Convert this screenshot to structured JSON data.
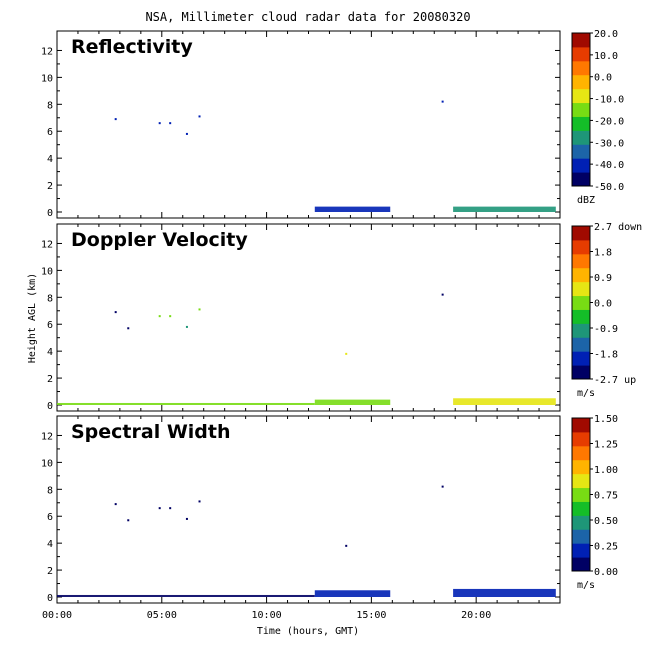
{
  "title": "NSA, Millimeter cloud radar data for 20080320",
  "ylabel": "Height AGL (km)",
  "xlabel": "Time (hours, GMT)",
  "xticks": [
    "00:00",
    "05:00",
    "10:00",
    "15:00",
    "20:00"
  ],
  "yticks": [
    "0",
    "2",
    "4",
    "6",
    "8",
    "10",
    "12"
  ],
  "colors": {
    "colormap": [
      "#000064",
      "#0020b4",
      "#1c64a8",
      "#1e9678",
      "#14be28",
      "#78dc14",
      "#e6e614",
      "#ffb400",
      "#ff7800",
      "#e63c00",
      "#a00a00"
    ]
  },
  "chart_data": [
    {
      "type": "heatmap",
      "title": "Reflectivity",
      "x_range_hours": [
        0,
        24
      ],
      "ylim_km": [
        0,
        13
      ],
      "colorbar": {
        "ticks": [
          "20.0",
          "10.0",
          "0.0",
          "-10.0",
          "-20.0",
          "-30.0",
          "-40.0",
          "-50.0"
        ],
        "unit": "dBZ",
        "range": [
          -50,
          20
        ]
      },
      "returns": [
        {
          "t_start": 12.3,
          "t_end": 15.9,
          "z_top_km": 0.4,
          "value": -45
        },
        {
          "t_start": 18.9,
          "t_end": 23.8,
          "z_top_km": 0.4,
          "value": -30
        }
      ],
      "isolated_points": [
        {
          "t": 2.8,
          "z_km": 6.9,
          "value": -45
        },
        {
          "t": 4.9,
          "z_km": 6.6,
          "value": -45
        },
        {
          "t": 5.4,
          "z_km": 6.6,
          "value": -45
        },
        {
          "t": 6.2,
          "z_km": 5.8,
          "value": -45
        },
        {
          "t": 6.8,
          "z_km": 7.1,
          "value": -45
        },
        {
          "t": 18.4,
          "z_km": 8.2,
          "value": -45
        }
      ]
    },
    {
      "type": "heatmap",
      "title": "Doppler Velocity",
      "x_range_hours": [
        0,
        24
      ],
      "ylim_km": [
        0,
        13
      ],
      "colorbar": {
        "ticks": [
          "2.7 down",
          "1.8",
          "0.9",
          "0.0",
          "-0.9",
          "-1.8",
          "-2.7 up"
        ],
        "unit": "m/s",
        "range": [
          -2.7,
          2.7
        ]
      },
      "returns": [
        {
          "t_start": 0,
          "t_end": 12.3,
          "z_top_km": 0.15,
          "value": 0.2
        },
        {
          "t_start": 12.3,
          "t_end": 15.9,
          "z_top_km": 0.4,
          "value": 0.2
        },
        {
          "t_start": 18.9,
          "t_end": 23.8,
          "z_top_km": 0.5,
          "value": 0.3
        }
      ],
      "isolated_points": [
        {
          "t": 2.8,
          "z_km": 6.9,
          "value": -2.5
        },
        {
          "t": 3.4,
          "z_km": 5.7,
          "value": -2.5
        },
        {
          "t": 4.9,
          "z_km": 6.6,
          "value": 0.2
        },
        {
          "t": 5.4,
          "z_km": 6.6,
          "value": 0.2
        },
        {
          "t": 6.2,
          "z_km": 5.8,
          "value": -0.9
        },
        {
          "t": 6.8,
          "z_km": 7.1,
          "value": 0.2
        },
        {
          "t": 13.8,
          "z_km": 3.8,
          "value": 0.3
        },
        {
          "t": 18.4,
          "z_km": 8.2,
          "value": -2.5
        }
      ]
    },
    {
      "type": "heatmap",
      "title": "Spectral Width",
      "x_range_hours": [
        0,
        24
      ],
      "ylim_km": [
        0,
        13
      ],
      "colorbar": {
        "ticks": [
          "1.50",
          "1.25",
          "1.00",
          "0.75",
          "0.50",
          "0.25",
          "0.00"
        ],
        "unit": "m/s",
        "range": [
          0,
          1.5
        ]
      },
      "returns": [
        {
          "t_start": 0,
          "t_end": 12.3,
          "z_top_km": 0.15,
          "value": 0.05
        },
        {
          "t_start": 12.3,
          "t_end": 15.9,
          "z_top_km": 0.5,
          "value": 0.1
        },
        {
          "t_start": 18.9,
          "t_end": 23.8,
          "z_top_km": 0.6,
          "value": 0.12
        }
      ],
      "isolated_points": [
        {
          "t": 2.8,
          "z_km": 6.9,
          "value": 0.05
        },
        {
          "t": 3.4,
          "z_km": 5.7,
          "value": 0.05
        },
        {
          "t": 4.9,
          "z_km": 6.6,
          "value": 0.05
        },
        {
          "t": 5.4,
          "z_km": 6.6,
          "value": 0.05
        },
        {
          "t": 6.2,
          "z_km": 5.8,
          "value": 0.05
        },
        {
          "t": 6.8,
          "z_km": 7.1,
          "value": 0.05
        },
        {
          "t": 13.8,
          "z_km": 3.8,
          "value": 0.05
        },
        {
          "t": 18.4,
          "z_km": 8.2,
          "value": 0.05
        }
      ]
    }
  ]
}
